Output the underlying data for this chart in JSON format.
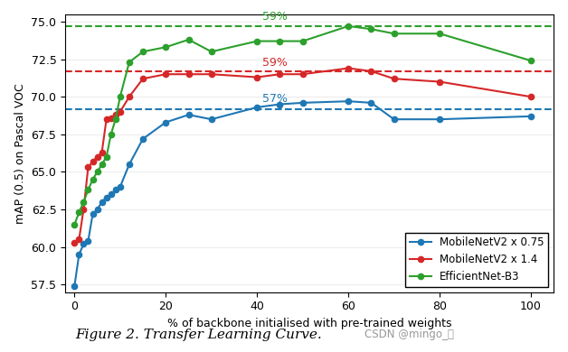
{
  "blue_x": [
    0,
    1,
    2,
    3,
    4,
    5,
    6,
    7,
    8,
    9,
    10,
    12,
    15,
    20,
    25,
    30,
    40,
    45,
    50,
    60,
    65,
    70,
    80,
    100
  ],
  "blue_y": [
    57.4,
    59.5,
    60.2,
    60.4,
    62.2,
    62.5,
    63.0,
    63.3,
    63.5,
    63.8,
    64.0,
    65.5,
    67.2,
    68.3,
    68.8,
    68.5,
    69.3,
    69.5,
    69.6,
    69.7,
    69.6,
    68.5,
    68.5,
    68.7
  ],
  "red_x": [
    0,
    1,
    2,
    3,
    4,
    5,
    6,
    7,
    8,
    9,
    10,
    12,
    15,
    20,
    25,
    30,
    40,
    45,
    50,
    60,
    65,
    70,
    80,
    100
  ],
  "red_y": [
    60.3,
    60.5,
    62.5,
    65.3,
    65.7,
    66.0,
    66.3,
    68.5,
    68.6,
    68.8,
    69.0,
    70.0,
    71.2,
    71.5,
    71.5,
    71.5,
    71.3,
    71.5,
    71.5,
    71.9,
    71.7,
    71.2,
    71.0,
    70.0
  ],
  "green_x": [
    0,
    1,
    2,
    3,
    4,
    5,
    6,
    7,
    8,
    9,
    10,
    12,
    15,
    20,
    25,
    30,
    40,
    45,
    50,
    60,
    65,
    70,
    80,
    100
  ],
  "green_y": [
    61.5,
    62.3,
    63.0,
    63.8,
    64.5,
    65.0,
    65.5,
    66.0,
    67.5,
    68.5,
    70.0,
    72.3,
    73.0,
    73.3,
    73.8,
    73.0,
    73.7,
    73.7,
    73.7,
    74.7,
    74.5,
    74.2,
    74.2,
    72.4
  ],
  "blue_hline": 69.2,
  "red_hline": 71.7,
  "green_hline": 74.7,
  "blue_label": "MobileNetV2 x 0.75",
  "red_label": "MobileNetV2 x 1.4",
  "green_label": "EfficientNet-B3",
  "blue_pct": "57%",
  "red_pct": "59%",
  "green_pct": "59%",
  "blue_pct_x": 44,
  "blue_pct_y": 69.45,
  "red_pct_x": 44,
  "red_pct_y": 71.9,
  "green_pct_x": 44,
  "green_pct_y": 74.92,
  "xlabel": "% of backbone initialised with pre-trained weights",
  "ylabel": "mAP (0.5) on Pascal VOC",
  "figure_caption": "Figure 2. Transfer Learning Curve.",
  "watermark": "CSDN @mingo_敏",
  "xlim": [
    -2,
    105
  ],
  "ylim": [
    57.0,
    75.5
  ],
  "yticks": [
    57.5,
    60.0,
    62.5,
    65.0,
    67.5,
    70.0,
    72.5,
    75.0
  ],
  "xticks": [
    0,
    20,
    40,
    60,
    80,
    100
  ],
  "blue_color": "#1f77b4",
  "red_color": "#d62728",
  "green_color": "#2ca02c",
  "fig_width": 6.28,
  "fig_height": 3.9,
  "dpi": 100
}
